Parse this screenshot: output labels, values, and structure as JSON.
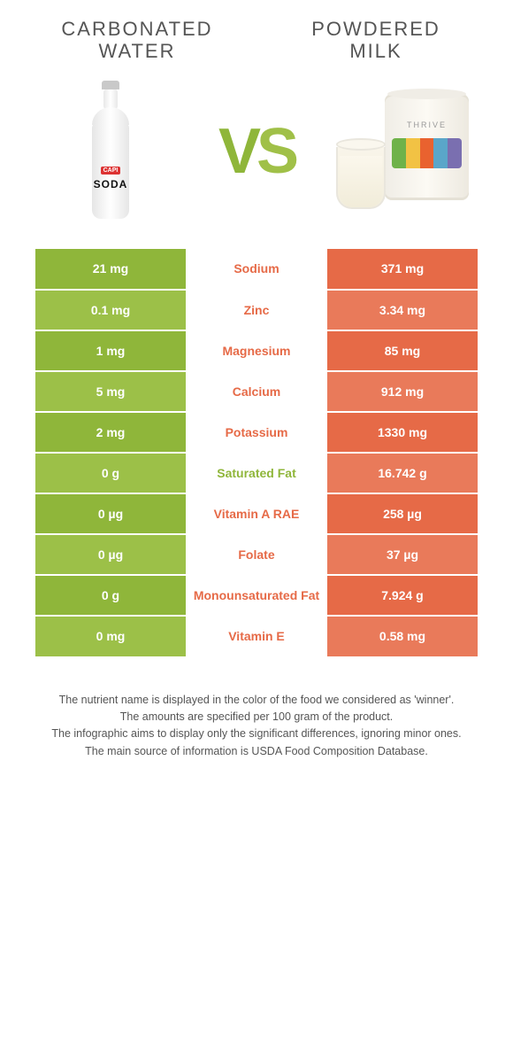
{
  "leftProduct": {
    "title": "CARBONATED WATER",
    "labelTag": "CAPI",
    "labelSoda": "SODA"
  },
  "rightProduct": {
    "title": "POWDERED MILK",
    "brand": "THRIVE"
  },
  "vs": "VS",
  "colors": {
    "leftCol": "#8fb63a",
    "rightCol": "#e66a47",
    "leftAlt": "#9cc048",
    "rightAlt": "#e97a5a",
    "midGreen": "#8fb63a",
    "midOrange": "#e66a47",
    "stripes": [
      "#6fb24a",
      "#f2c244",
      "#e9622f",
      "#5aa6c9",
      "#7a6fb0"
    ]
  },
  "rows": [
    {
      "nutrient": "Sodium",
      "left": "21 mg",
      "right": "371 mg",
      "winner": "right"
    },
    {
      "nutrient": "Zinc",
      "left": "0.1 mg",
      "right": "3.34 mg",
      "winner": "right"
    },
    {
      "nutrient": "Magnesium",
      "left": "1 mg",
      "right": "85 mg",
      "winner": "right"
    },
    {
      "nutrient": "Calcium",
      "left": "5 mg",
      "right": "912 mg",
      "winner": "right"
    },
    {
      "nutrient": "Potassium",
      "left": "2 mg",
      "right": "1330 mg",
      "winner": "right"
    },
    {
      "nutrient": "Saturated Fat",
      "left": "0 g",
      "right": "16.742 g",
      "winner": "left"
    },
    {
      "nutrient": "Vitamin A RAE",
      "left": "0 µg",
      "right": "258 µg",
      "winner": "right"
    },
    {
      "nutrient": "Folate",
      "left": "0 µg",
      "right": "37 µg",
      "winner": "right"
    },
    {
      "nutrient": "Monounsaturated Fat",
      "left": "0 g",
      "right": "7.924 g",
      "winner": "right"
    },
    {
      "nutrient": "Vitamin E",
      "left": "0 mg",
      "right": "0.58 mg",
      "winner": "right"
    }
  ],
  "footer": [
    "The nutrient name is displayed in the color of the food we considered as 'winner'.",
    "The amounts are specified per 100 gram of the product.",
    "The infographic aims to display only the significant differences, ignoring minor ones.",
    "The main source of information is USDA Food Composition Database."
  ]
}
